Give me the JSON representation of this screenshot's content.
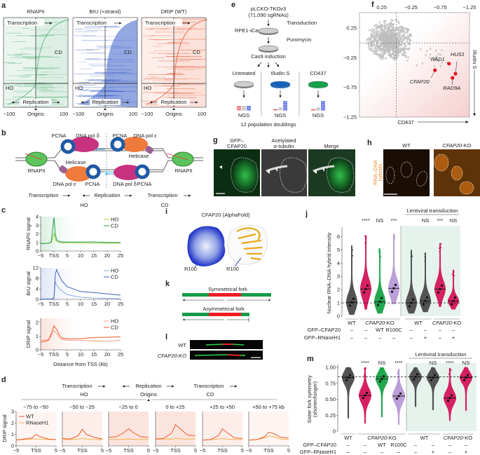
{
  "panel_labels": {
    "a": "a",
    "b": "b",
    "c": "c",
    "d": "d",
    "e": "e",
    "f": "f",
    "g": "g",
    "h": "h",
    "i": "i",
    "j": "j",
    "k": "k",
    "l": "l",
    "m": "m"
  },
  "a": {
    "titles": [
      "RNAPII",
      "BrU (+strand)",
      "DRIP (WT)"
    ],
    "transcription": "Transcription",
    "replication": "Replication",
    "cd": "CD",
    "ho": "HO",
    "tick_left": "−100",
    "tick_mid": "Origins",
    "tick_right": "100",
    "colors": [
      "#4caf74",
      "#3a5fc8",
      "#e8502a"
    ]
  },
  "b": {
    "pcna": "PCNA",
    "pol_delta": "DNA pol δ",
    "pol_epsilon": "DNA pol ε",
    "helicase": "Helicase",
    "rnapii": "RNAPII",
    "transcription": "Transcription",
    "replication": "Replication",
    "ho": "HO",
    "cd": "CD"
  },
  "c": {
    "xlabel": "Distance from TSS (kb)"
  },
  "d": {
    "transcription": "Transcription",
    "replication": "Replication",
    "ho": "HO",
    "origins": "Origins",
    "cd": "CD",
    "ylabel": "DRIP signal"
  },
  "e": {
    "library": "pLCKO-TKOv3",
    "library_size": "(71,090 sgRNAs)",
    "transduction": "Transduction",
    "cell_line": "RPE1-iCas9",
    "puromycin": "Puromycin",
    "induction": "Cas9 induction",
    "arms": [
      "Untreated",
      "Illudin S",
      "CD437"
    ],
    "arm_colors": [
      "#9a9a9a",
      "#1565c0",
      "#16a34a"
    ],
    "ngs": "NGS",
    "doublings": "12 population doublings"
  },
  "g": {
    "titles": [
      "GFP–",
      "CFAP20",
      "Acetylated",
      "α-tubulin",
      "Merge"
    ]
  },
  "h": {
    "wt": "WT",
    "ko_gene": "CFAP20",
    "ko_suffix": "-KO",
    "ylabel1": "RNA–DNA",
    "ylabel2": "hybrids"
  },
  "i": {
    "title": "CFAP20 (AlphaFold)",
    "residue": "R100"
  },
  "k": {
    "symmetric": "Symmetrical fork",
    "asymmetric": "Asymmetrical fork"
  },
  "l": {
    "wt": "WT",
    "ko": "CFAP20-KO"
  },
  "chart_data": [
    {
      "id": "c-rnapii",
      "type": "line",
      "ylabel": "RNAPII signal",
      "ylim": [
        0,
        4
      ],
      "yticks": [
        0,
        1,
        2,
        3,
        4
      ],
      "xlim": [
        -5,
        25
      ],
      "xticks": [
        "−5",
        "TSS",
        "5",
        "10",
        "15",
        "20",
        "25"
      ],
      "x": [
        -5,
        -2,
        -1,
        0,
        0.5,
        1,
        2,
        3,
        5,
        10,
        15,
        20,
        25
      ],
      "series": [
        {
          "name": "HO",
          "color": "#9ccc3c",
          "values": [
            0.9,
            0.9,
            1.0,
            2.1,
            1.4,
            1.1,
            1.0,
            0.95,
            0.95,
            0.95,
            0.9,
            0.9,
            0.9
          ]
        },
        {
          "name": "CD",
          "color": "#1e9e50",
          "values": [
            0.85,
            0.9,
            1.1,
            3.9,
            2.0,
            1.3,
            1.1,
            1.05,
            1.05,
            1.05,
            1.05,
            1.0,
            1.0
          ]
        }
      ]
    },
    {
      "id": "c-bru",
      "type": "line",
      "ylabel": "BrU signal",
      "ylim": [
        0,
        12
      ],
      "yticks": [
        0,
        4,
        8,
        12
      ],
      "xlim": [
        -5,
        25
      ],
      "xticks": [
        "−5",
        "TSS",
        "5",
        "10",
        "15",
        "20",
        "25"
      ],
      "x": [
        -5,
        -2,
        -1,
        0,
        0.5,
        1,
        2,
        3,
        5,
        10,
        15,
        20,
        25
      ],
      "series": [
        {
          "name": "HO",
          "color": "#8fa8e0",
          "values": [
            0.1,
            0.1,
            0.1,
            0.5,
            6.8,
            5.5,
            4.2,
            3.2,
            1.8,
            0.8,
            0.5,
            0.4,
            0.3
          ]
        },
        {
          "name": "CD",
          "color": "#3a62c4",
          "values": [
            0.1,
            0.1,
            0.1,
            0.5,
            9.5,
            11.3,
            9.0,
            7.0,
            4.8,
            3.0,
            2.6,
            2.1,
            1.6
          ]
        }
      ]
    },
    {
      "id": "c-drip",
      "type": "line",
      "ylabel": "DRIP signal",
      "ylim": [
        0,
        2.3
      ],
      "yticks": [
        0,
        1,
        2
      ],
      "xlim": [
        -5,
        25
      ],
      "xticks": [
        "−5",
        "TSS",
        "5",
        "10",
        "15",
        "20",
        "25"
      ],
      "x": [
        -5,
        -2,
        -1,
        0,
        0.5,
        1,
        2,
        3,
        5,
        10,
        15,
        20,
        25
      ],
      "series": [
        {
          "name": "HO",
          "color": "#f4a08a",
          "values": [
            0.65,
            0.75,
            1.0,
            1.4,
            1.3,
            1.2,
            0.9,
            0.75,
            0.7,
            0.7,
            0.65,
            0.62,
            0.7
          ]
        },
        {
          "name": "CD",
          "color": "#ee5a2a",
          "values": [
            0.55,
            0.7,
            1.2,
            1.75,
            1.6,
            1.5,
            1.1,
            0.85,
            0.8,
            0.82,
            0.9,
            0.92,
            0.95
          ]
        }
      ]
    },
    {
      "id": "d",
      "type": "line",
      "ylim": [
        0,
        3
      ],
      "yticks": [
        0,
        1,
        2,
        3
      ],
      "xlim": [
        -5,
        5
      ],
      "xticks": [
        "−5",
        "TSS",
        "5"
      ],
      "x": [
        -5,
        -3,
        -1,
        0,
        1,
        3,
        5
      ],
      "legend": [
        {
          "name": "WT",
          "color": "#ee5a2a"
        },
        {
          "name": "RNaseH1",
          "color": "#f6b04a"
        }
      ],
      "panels": [
        {
          "title": "−75 to −50",
          "wt": [
            0.5,
            0.6,
            0.7,
            1.0,
            0.8,
            0.6,
            0.55
          ],
          "rnaseh1": [
            0.55,
            0.55,
            0.6,
            0.62,
            0.6,
            0.55,
            0.55
          ]
        },
        {
          "title": "−50 to −25",
          "wt": [
            0.65,
            0.6,
            0.9,
            1.45,
            1.0,
            0.75,
            0.6
          ],
          "rnaseh1": [
            0.55,
            0.55,
            0.6,
            0.65,
            0.6,
            0.55,
            0.55
          ]
        },
        {
          "title": "−25 to 0",
          "wt": [
            0.75,
            0.8,
            1.2,
            1.5,
            1.2,
            0.8,
            0.75
          ],
          "rnaseh1": [
            0.55,
            0.55,
            0.58,
            0.6,
            0.58,
            0.56,
            0.56
          ]
        },
        {
          "title": "0 to +25",
          "wt": [
            0.6,
            0.65,
            1.1,
            1.85,
            1.55,
            0.95,
            0.88
          ],
          "rnaseh1": [
            0.58,
            0.6,
            0.6,
            0.65,
            0.62,
            0.6,
            0.6
          ]
        },
        {
          "title": "+25 to +50",
          "wt": [
            0.5,
            0.55,
            0.9,
            1.5,
            1.2,
            0.7,
            0.65
          ],
          "rnaseh1": [
            0.5,
            0.55,
            0.6,
            0.65,
            0.6,
            0.55,
            0.55
          ]
        },
        {
          "title": "+50 to +75 kb",
          "wt": [
            0.5,
            0.55,
            0.8,
            1.2,
            1.1,
            0.75,
            0.7
          ],
          "rnaseh1": [
            0.5,
            0.55,
            0.7,
            0.85,
            0.8,
            0.6,
            0.55
          ]
        }
      ]
    },
    {
      "id": "f",
      "type": "scatter",
      "xlabel": "CD437",
      "ylabel": "Illudin S",
      "xlim": [
        0.63,
        -1.25
      ],
      "ylim": [
        -1.25,
        0.51
      ],
      "xticks": [
        0.25,
        -0.25,
        -0.75,
        -1.25
      ],
      "yticks": [
        0.25,
        -0.25,
        -0.75,
        -1.25
      ],
      "reference_lines": {
        "x": 0,
        "y": 0
      },
      "background_color": "#bdbdbd",
      "highlight_color": "#e8101a",
      "highlighted": [
        {
          "gene": "CFAP20",
          "x": -0.66,
          "y": -0.46
        },
        {
          "gene": "RAD1",
          "x": -0.9,
          "y": -0.35
        },
        {
          "gene": "HUS1",
          "x": -1.01,
          "y": -0.52
        },
        {
          "gene": "RAD9A",
          "x": -0.96,
          "y": -0.59
        }
      ]
    },
    {
      "id": "j",
      "type": "violin",
      "ylabel": "Nuclear RNA–DNA hybrid intensity",
      "ylim": [
        0,
        6.5
      ],
      "yticks": [
        0,
        1,
        2,
        3,
        4,
        5,
        6
      ],
      "reference_line": 1,
      "header": "Lentiviral transduction",
      "groups": [
        {
          "label": "WT",
          "italic": "",
          "cols": [
            0
          ]
        },
        {
          "label": "-KO",
          "italic": "CFAP20",
          "cols": [
            1,
            2,
            3
          ]
        },
        {
          "label": "WT",
          "italic": "",
          "cols": [
            4,
            5
          ]
        },
        {
          "label": "-KO",
          "italic": "CFAP20",
          "cols": [
            6,
            7
          ]
        }
      ],
      "row_labels": [
        "GFP–CFAP20",
        "GFP–RNaseH1"
      ],
      "gfp_cfap20": [
        "–",
        "–",
        "WT",
        "R100C",
        "–",
        "–",
        "–",
        "–"
      ],
      "gfp_rnaseh1": [
        "–",
        "–",
        "–",
        "–",
        "–",
        "+",
        "–",
        "+"
      ],
      "significance": [
        "",
        "****",
        "NS",
        "***",
        "",
        "NS",
        "***",
        "NS"
      ],
      "colors": [
        "#4a4a4a",
        "#d4145a",
        "#17a346",
        "#b79ad6",
        "#4a4a4a",
        "#4a4a4a",
        "#d4145a",
        "#d4145a"
      ],
      "medians": [
        1.05,
        2.05,
        1.1,
        2.1,
        1.0,
        1.15,
        2.05,
        1.15
      ],
      "min": [
        0.1,
        0.5,
        0.2,
        0.9,
        0.2,
        0.3,
        0.7,
        0.5
      ],
      "max": [
        5.3,
        6.1,
        5.1,
        6.2,
        5.0,
        4.8,
        5.5,
        3.5
      ]
    },
    {
      "id": "m",
      "type": "violin",
      "ylabel": "Sister fork symmetry",
      "ylabel2": "(shorter/longer)",
      "ylim": [
        0,
        1
      ],
      "yticks": [
        "0",
        "0.25",
        "0.50",
        "0.75",
        "1.00"
      ],
      "reference_line": 0.85,
      "header": "Lentiviral transduction",
      "groups": [
        {
          "label": "WT",
          "italic": "",
          "cols": [
            0
          ]
        },
        {
          "label": "-KO",
          "italic": "CFAP20",
          "cols": [
            1,
            2,
            3
          ]
        },
        {
          "label": "WT",
          "italic": "",
          "cols": [
            4,
            5
          ]
        },
        {
          "label": "-KO",
          "italic": "CFAP20",
          "cols": [
            6,
            7
          ]
        }
      ],
      "row_labels": [
        "GFP–CFAP20",
        "GFP–RNaseH1"
      ],
      "gfp_cfap20": [
        "–",
        "–",
        "WT",
        "R100C",
        "–",
        "–",
        "–",
        "–"
      ],
      "gfp_rnaseh1": [
        "–",
        "–",
        "–",
        "–",
        "–",
        "+",
        "–",
        "+"
      ],
      "significance": [
        "",
        "****",
        "NS",
        "****",
        "",
        "NS",
        "****",
        "NS"
      ],
      "colors": [
        "#4a4a4a",
        "#d4145a",
        "#17a346",
        "#b79ad6",
        "#4a4a4a",
        "#4a4a4a",
        "#d4145a",
        "#d4145a"
      ],
      "medians": [
        0.84,
        0.56,
        0.82,
        0.55,
        0.85,
        0.84,
        0.52,
        0.84
      ],
      "min": [
        0.2,
        0.12,
        0.22,
        0.1,
        0.38,
        0.33,
        0.16,
        0.32
      ],
      "max": [
        1,
        1,
        1,
        0.98,
        1,
        1,
        0.99,
        1
      ]
    }
  ]
}
